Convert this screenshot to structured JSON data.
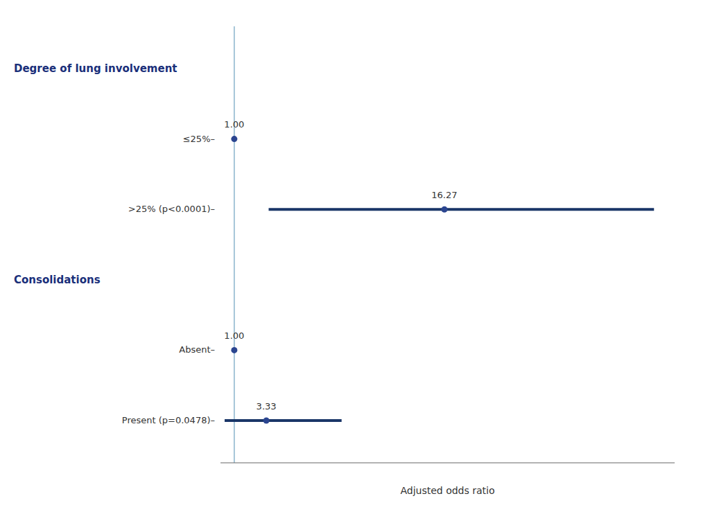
{
  "chart_data": {
    "type": "forest",
    "orientation": "horizontal",
    "xlabel": "Adjusted odds ratio",
    "categories": [
      "≤25%–",
      ">25% (p<0.0001)–",
      "Absent–",
      "Present (p=0.0478)–"
    ],
    "group": [
      "Degree of lung involvement",
      "Degree of lung involvement",
      "Consolidations",
      "Consolidations"
    ],
    "values": [
      1.0,
      16.27,
      1.0,
      3.33
    ],
    "value_labels": [
      "1.00",
      "16.27",
      "1.00",
      "3.33"
    ],
    "ci_low": [
      null,
      3.5,
      null,
      0.3
    ],
    "ci_high": [
      null,
      31.5,
      null,
      8.8
    ],
    "reference_line": 1.0,
    "xlim": [
      0,
      33
    ],
    "tick_labels": "y",
    "data_labels": true,
    "grid": false,
    "color": "#2b4590",
    "ci_color": "#1a3668",
    "reference_line_color": "#8ab4cc",
    "header_color": "#1a2f7a"
  }
}
